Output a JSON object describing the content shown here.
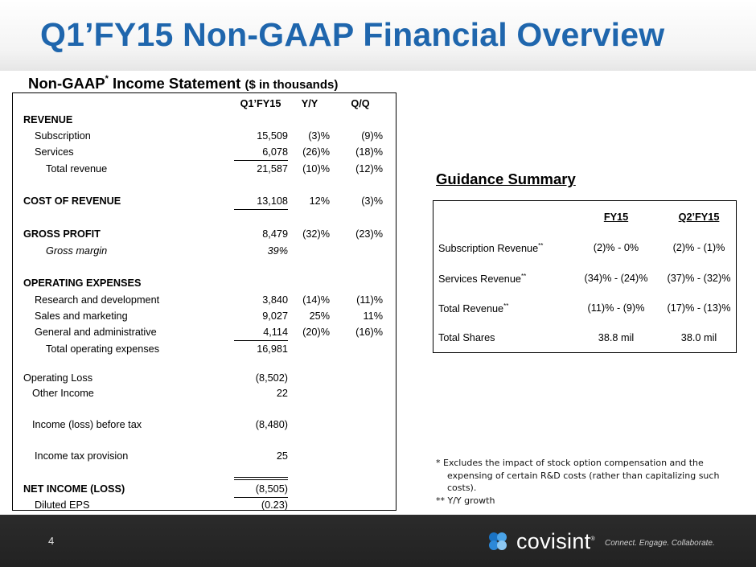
{
  "title": "Q1’FY15 Non-GAAP Financial Overview",
  "subtitle": {
    "main": "Non-GAAP",
    "sup": "*",
    "rest": " Income Statement ",
    "small": "($ in thousands)"
  },
  "income_statement": {
    "headers": [
      "Q1’FY15",
      "Y/Y",
      "Q/Q"
    ],
    "rows": [
      {
        "label": "REVENUE",
        "v1": "",
        "v2": "",
        "v3": ""
      },
      {
        "label": "Subscription",
        "v1": "15,509",
        "v2": "(3)%",
        "v3": "(9)%"
      },
      {
        "label": "Services",
        "v1": "6,078",
        "v2": "(26)%",
        "v3": "(18)%"
      },
      {
        "label": "Total revenue",
        "v1": "21,587",
        "v2": "(10)%",
        "v3": "(12)%"
      },
      {
        "label": "COST OF REVENUE",
        "v1": "13,108",
        "v2": "12%",
        "v3": "(3)%"
      },
      {
        "label": "GROSS PROFIT",
        "v1": "8,479",
        "v2": "(32)%",
        "v3": "(23)%"
      },
      {
        "label": "Gross margin",
        "v1": "39%",
        "v2": "",
        "v3": ""
      },
      {
        "label": "OPERATING EXPENSES",
        "v1": "",
        "v2": "",
        "v3": ""
      },
      {
        "label": "Research and development",
        "v1": "3,840",
        "v2": "(14)%",
        "v3": "(11)%"
      },
      {
        "label": "Sales and marketing",
        "v1": "9,027",
        "v2": "25%",
        "v3": "11%"
      },
      {
        "label": "General and administrative",
        "v1": "4,114",
        "v2": "(20)%",
        "v3": "(16)%"
      },
      {
        "label": "Total operating expenses",
        "v1": "16,981",
        "v2": "",
        "v3": ""
      },
      {
        "label": "Operating Loss",
        "v1": "(8,502)",
        "v2": "",
        "v3": ""
      },
      {
        "label": "Other Income",
        "v1": "22",
        "v2": "",
        "v3": ""
      },
      {
        "label": "Income (loss) before tax",
        "v1": "(8,480)",
        "v2": "",
        "v3": ""
      },
      {
        "label": "Income tax provision",
        "v1": "25",
        "v2": "",
        "v3": ""
      },
      {
        "label": "NET INCOME (LOSS)",
        "v1": "(8,505)",
        "v2": "",
        "v3": ""
      },
      {
        "label": "Diluted EPS",
        "v1": "(0.23)",
        "v2": "",
        "v3": ""
      }
    ]
  },
  "guidance": {
    "title": "Guidance Summary",
    "headers": [
      "FY15",
      "Q2’FY15"
    ],
    "rows": [
      {
        "label": "Subscription Revenue",
        "sup": "**",
        "v1": "(2)% - 0%",
        "v2": "(2)% - (1)%"
      },
      {
        "label": "Services Revenue",
        "sup": "**",
        "v1": "(34)% - (24)%",
        "v2": "(37)% - (32)%"
      },
      {
        "label": "Total Revenue",
        "sup": "**",
        "v1": "(11)% - (9)%",
        "v2": "(17)% - (13)%"
      },
      {
        "label": "Total Shares",
        "sup": "",
        "v1": "38.8 mil",
        "v2": "38.0 mil"
      }
    ]
  },
  "footnotes": {
    "line1": "* Excludes the impact of stock option compensation and the",
    "line2": "expensing of certain R&D costs (rather than capitalizing such",
    "line3": "costs).",
    "line4": "** Y/Y growth"
  },
  "footer": {
    "page_number": "4",
    "logo_text": "covisint",
    "logo_mark": "®",
    "tagline": "Connect. Engage. Collaborate.",
    "logo_colors": [
      "#1a73c4",
      "#4aa3e8",
      "#2c88d8",
      "#8cc7f2"
    ]
  }
}
